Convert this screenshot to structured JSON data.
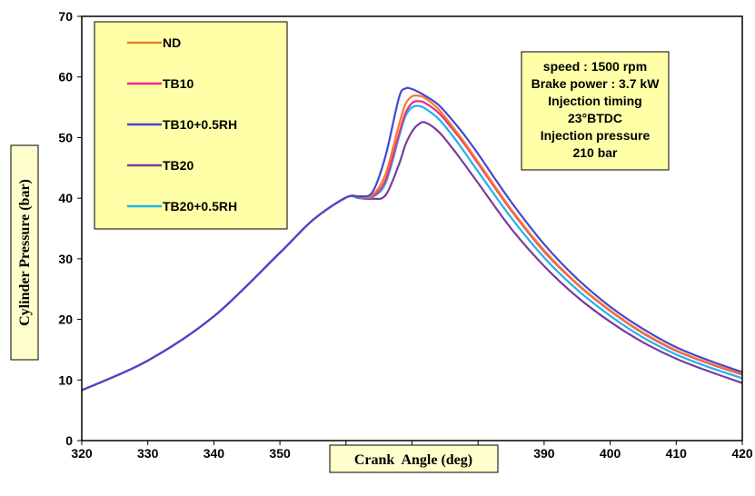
{
  "chart_data": {
    "type": "line",
    "title": "",
    "xlabel": "Crank  Angle (deg)",
    "ylabel": "Cylinder Pressure (bar)",
    "xlim": [
      320,
      420
    ],
    "ylim": [
      0,
      70
    ],
    "xticks": [
      320,
      330,
      340,
      350,
      360,
      370,
      380,
      390,
      400,
      410,
      420
    ],
    "yticks": [
      0,
      10,
      20,
      30,
      40,
      50,
      60,
      70
    ],
    "grid": false,
    "legend_position": "top-left",
    "annotation": [
      "speed : 1500  rpm",
      "Brake power : 3.7 kW",
      "Injection timing",
      "23°BTDC",
      "Injection pressure",
      "210 bar"
    ],
    "x": [
      320,
      330,
      340,
      350,
      355,
      360,
      362,
      364,
      366,
      368,
      369,
      370,
      371,
      372,
      374,
      376,
      378,
      380,
      385,
      390,
      395,
      400,
      405,
      410,
      415,
      420
    ],
    "series": [
      {
        "name": "ND",
        "color": "#f07d28",
        "values": [
          8.3,
          13.2,
          20.5,
          31.0,
          36.4,
          40.1,
          40.3,
          40.5,
          44.0,
          52.0,
          55.5,
          56.8,
          56.9,
          56.5,
          54.7,
          52.0,
          49.1,
          46.0,
          38.2,
          31.4,
          25.9,
          21.5,
          17.8,
          14.9,
          12.8,
          11.0
        ]
      },
      {
        "name": "TB10",
        "color": "#ea2d8c",
        "values": [
          8.3,
          13.2,
          20.5,
          31.0,
          36.4,
          40.1,
          40.2,
          40.3,
          43.0,
          50.5,
          54.0,
          55.7,
          56.0,
          55.7,
          54.1,
          51.6,
          48.8,
          45.7,
          38.0,
          31.2,
          25.8,
          21.4,
          17.7,
          14.8,
          12.7,
          10.9
        ]
      },
      {
        "name": "TB10+0.5RH",
        "color": "#4646d2",
        "values": [
          8.3,
          13.2,
          20.5,
          31.0,
          36.4,
          40.1,
          40.3,
          41.0,
          47.0,
          56.5,
          58.1,
          58.0,
          57.5,
          56.9,
          55.4,
          53.0,
          50.3,
          47.3,
          39.4,
          32.4,
          26.7,
          22.1,
          18.4,
          15.4,
          13.2,
          11.3
        ]
      },
      {
        "name": "TB20",
        "color": "#7a3b9c",
        "values": [
          8.3,
          13.2,
          20.5,
          31.0,
          36.4,
          40.1,
          40.0,
          39.9,
          40.5,
          45.5,
          48.8,
          51.0,
          52.2,
          52.5,
          51.0,
          48.4,
          45.5,
          42.5,
          35.0,
          28.8,
          23.7,
          19.6,
          16.2,
          13.5,
          11.4,
          9.5
        ]
      },
      {
        "name": "TB20+0.5RH",
        "color": "#1eb4e6",
        "values": [
          8.3,
          13.2,
          20.5,
          31.0,
          36.4,
          40.1,
          40.1,
          40.2,
          42.5,
          50.0,
          53.5,
          55.0,
          55.2,
          54.8,
          53.1,
          50.5,
          47.5,
          44.4,
          36.8,
          30.2,
          24.9,
          20.6,
          17.0,
          14.2,
          12.1,
          10.3
        ]
      }
    ]
  }
}
